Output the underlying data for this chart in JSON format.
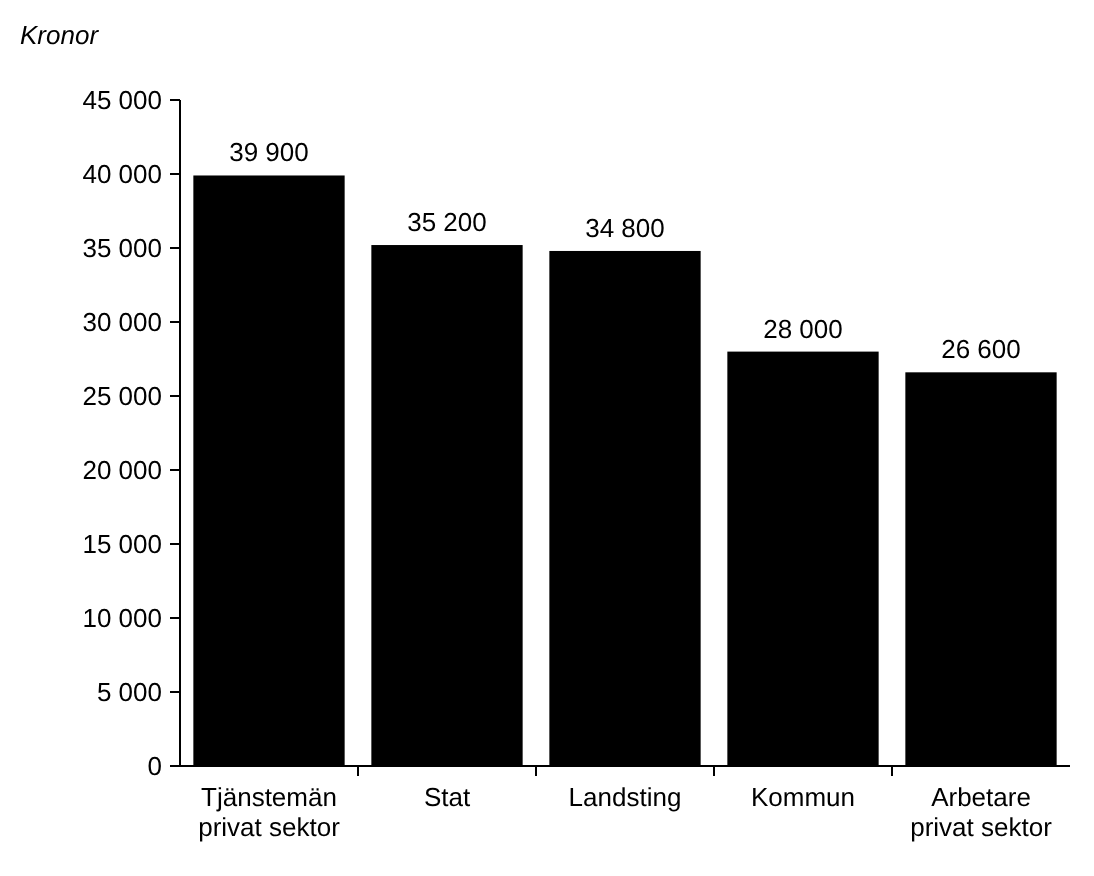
{
  "chart_data": {
    "type": "bar",
    "ylabel": "Kronor",
    "categories": [
      "Tjänstemän privat sektor",
      "Stat",
      "Landsting",
      "Kommun",
      "Arbetare privat sektor"
    ],
    "values": [
      39900,
      35200,
      34800,
      28000,
      26600
    ],
    "value_labels": [
      "39 900",
      "35 200",
      "34 800",
      "28 000",
      "26 600"
    ],
    "color": "#000000",
    "ylim": [
      0,
      45000
    ],
    "yticks": [
      0,
      {
        "value": 5000,
        "label": "5 000"
      },
      {
        "value": 10000,
        "label": "10 000"
      },
      {
        "value": 15000,
        "label": "15 000"
      },
      {
        "value": 20000,
        "label": "20 000"
      },
      {
        "value": 25000,
        "label": "25 000"
      },
      {
        "value": 30000,
        "label": "30 000"
      },
      {
        "value": 35000,
        "label": "35 000"
      },
      {
        "value": 40000,
        "label": "40 000"
      },
      {
        "value": 45000,
        "label": "45 000"
      }
    ],
    "grid": false
  }
}
